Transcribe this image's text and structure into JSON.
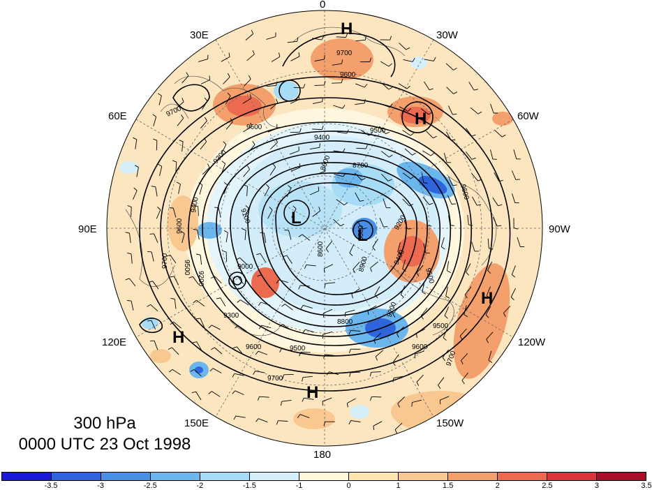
{
  "title": {
    "level": "300 hPa",
    "valid_time": "0000 UTC 23 Oct 1998"
  },
  "longitude_labels": {
    "top": "0",
    "upper_left": "30E",
    "upper_right": "30W",
    "left_high": "60E",
    "right_high": "60W",
    "left": "90E",
    "right": "90W",
    "left_low": "120E",
    "right_low": "120W",
    "lower_left": "150E",
    "lower_right": "150W",
    "bottom": "180"
  },
  "pressure_centers": [
    {
      "label": "H"
    },
    {
      "label": "H"
    },
    {
      "label": "H"
    },
    {
      "label": "H"
    },
    {
      "label": "H"
    },
    {
      "label": "L"
    },
    {
      "label": "L"
    }
  ],
  "contour_labels": [
    "9700",
    "9600",
    "9500",
    "9400",
    "9300",
    "9200",
    "9100",
    "9000",
    "8900",
    "8800",
    "8700",
    "8600"
  ],
  "colorbar": {
    "colors": [
      "#1a1ad6",
      "#2e64dc",
      "#4a8fe6",
      "#6cb6ee",
      "#a6dcf6",
      "#d6f0fb",
      "#fff7dc",
      "#fde6b0",
      "#f9c890",
      "#f4a06c",
      "#ec6a50",
      "#d8343a",
      "#a8102a"
    ],
    "tick_labels": [
      "-3.5",
      "-3",
      "-2.5",
      "-2",
      "-1.5",
      "-1",
      "0",
      "1",
      "1.5",
      "2",
      "2.5",
      "3",
      "3.5"
    ]
  },
  "icons": [
    "polar-stereographic-map",
    "wind-barbs",
    "height-contours",
    "coastlines"
  ]
}
